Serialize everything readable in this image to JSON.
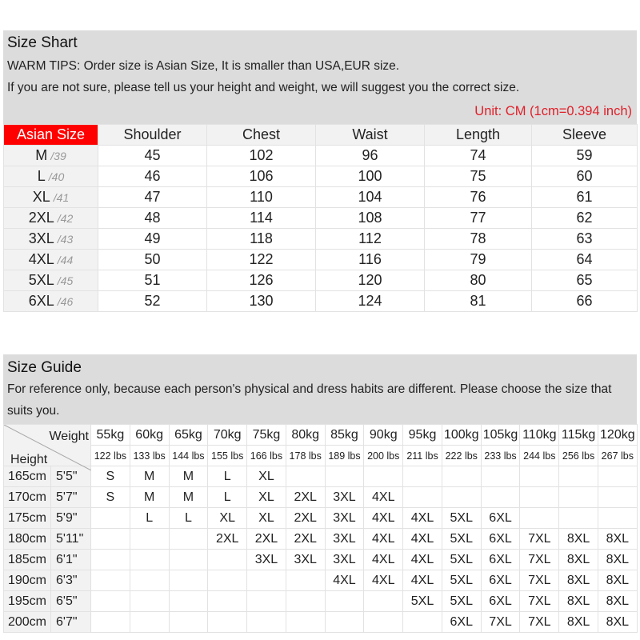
{
  "size_chart": {
    "title": "Size Shart",
    "tip1": "WARM TIPS: Order size is Asian Size, It is smaller than USA,EUR size.",
    "tip2": "If you are not sure, please tell us your height and weight, we will suggest you the correct size.",
    "unit": "Unit: CM (1cm=0.394 inch)",
    "accent": "#ff0000",
    "headers": [
      "Asian Size",
      "Shoulder",
      "Chest",
      "Waist",
      "Length",
      "Sleeve"
    ],
    "rows": [
      {
        "size": "M",
        "eu": "/39",
        "values": [
          "45",
          "102",
          "96",
          "74",
          "59"
        ]
      },
      {
        "size": "L",
        "eu": "/40",
        "values": [
          "46",
          "106",
          "100",
          "75",
          "60"
        ]
      },
      {
        "size": "XL",
        "eu": "/41",
        "values": [
          "47",
          "110",
          "104",
          "76",
          "61"
        ]
      },
      {
        "size": "2XL",
        "eu": "/42",
        "values": [
          "48",
          "114",
          "108",
          "77",
          "62"
        ]
      },
      {
        "size": "3XL",
        "eu": "/43",
        "values": [
          "49",
          "118",
          "112",
          "78",
          "63"
        ]
      },
      {
        "size": "4XL",
        "eu": "/44",
        "values": [
          "50",
          "122",
          "116",
          "79",
          "64"
        ]
      },
      {
        "size": "5XL",
        "eu": "/45",
        "values": [
          "51",
          "126",
          "120",
          "80",
          "65"
        ]
      },
      {
        "size": "6XL",
        "eu": "/46",
        "values": [
          "52",
          "130",
          "124",
          "81",
          "66"
        ]
      }
    ]
  },
  "size_guide": {
    "title": "Size Guide",
    "note1": "For reference only, because each person's physical and dress habits are different. Please choose the size that",
    "note2": "suits you.",
    "weight_label": "Weight",
    "height_label": "Height",
    "weights_kg": [
      "55kg",
      "60kg",
      "65kg",
      "70kg",
      "75kg",
      "80kg",
      "85kg",
      "90kg",
      "95kg",
      "100kg",
      "105kg",
      "110kg",
      "115kg",
      "120kg"
    ],
    "weights_lbs": [
      "122 lbs",
      "133 lbs",
      "144 lbs",
      "155 lbs",
      "166 lbs",
      "178 lbs",
      "189 lbs",
      "200 lbs",
      "211 lbs",
      "222 lbs",
      "233 lbs",
      "244 lbs",
      "256 lbs",
      "267 lbs"
    ],
    "rows": [
      {
        "cm": "165cm",
        "ft": "5'5\"",
        "sizes": [
          "S",
          "M",
          "M",
          "L",
          "XL",
          "",
          "",
          "",
          "",
          "",
          "",
          "",
          "",
          ""
        ]
      },
      {
        "cm": "170cm",
        "ft": "5'7\"",
        "sizes": [
          "S",
          "M",
          "M",
          "L",
          "XL",
          "2XL",
          "3XL",
          "4XL",
          "",
          "",
          "",
          "",
          "",
          ""
        ]
      },
      {
        "cm": "175cm",
        "ft": "5'9\"",
        "sizes": [
          "",
          "L",
          "L",
          "XL",
          "XL",
          "2XL",
          "3XL",
          "4XL",
          "4XL",
          "5XL",
          "6XL",
          "",
          "",
          ""
        ]
      },
      {
        "cm": "180cm",
        "ft": "5'11\"",
        "sizes": [
          "",
          "",
          "",
          "2XL",
          "2XL",
          "2XL",
          "3XL",
          "4XL",
          "4XL",
          "5XL",
          "6XL",
          "7XL",
          "8XL",
          "8XL"
        ]
      },
      {
        "cm": "185cm",
        "ft": "6'1\"",
        "sizes": [
          "",
          "",
          "",
          "",
          "3XL",
          "3XL",
          "3XL",
          "4XL",
          "4XL",
          "5XL",
          "6XL",
          "7XL",
          "8XL",
          "8XL"
        ]
      },
      {
        "cm": "190cm",
        "ft": "6'3\"",
        "sizes": [
          "",
          "",
          "",
          "",
          "",
          "",
          "4XL",
          "4XL",
          "4XL",
          "5XL",
          "6XL",
          "7XL",
          "8XL",
          "8XL"
        ]
      },
      {
        "cm": "195cm",
        "ft": "6'5\"",
        "sizes": [
          "",
          "",
          "",
          "",
          "",
          "",
          "",
          "",
          "5XL",
          "5XL",
          "6XL",
          "7XL",
          "8XL",
          "8XL"
        ]
      },
      {
        "cm": "200cm",
        "ft": "6'7\"",
        "sizes": [
          "",
          "",
          "",
          "",
          "",
          "",
          "",
          "",
          "",
          "6XL",
          "7XL",
          "7XL",
          "8XL",
          "8XL"
        ]
      }
    ]
  }
}
